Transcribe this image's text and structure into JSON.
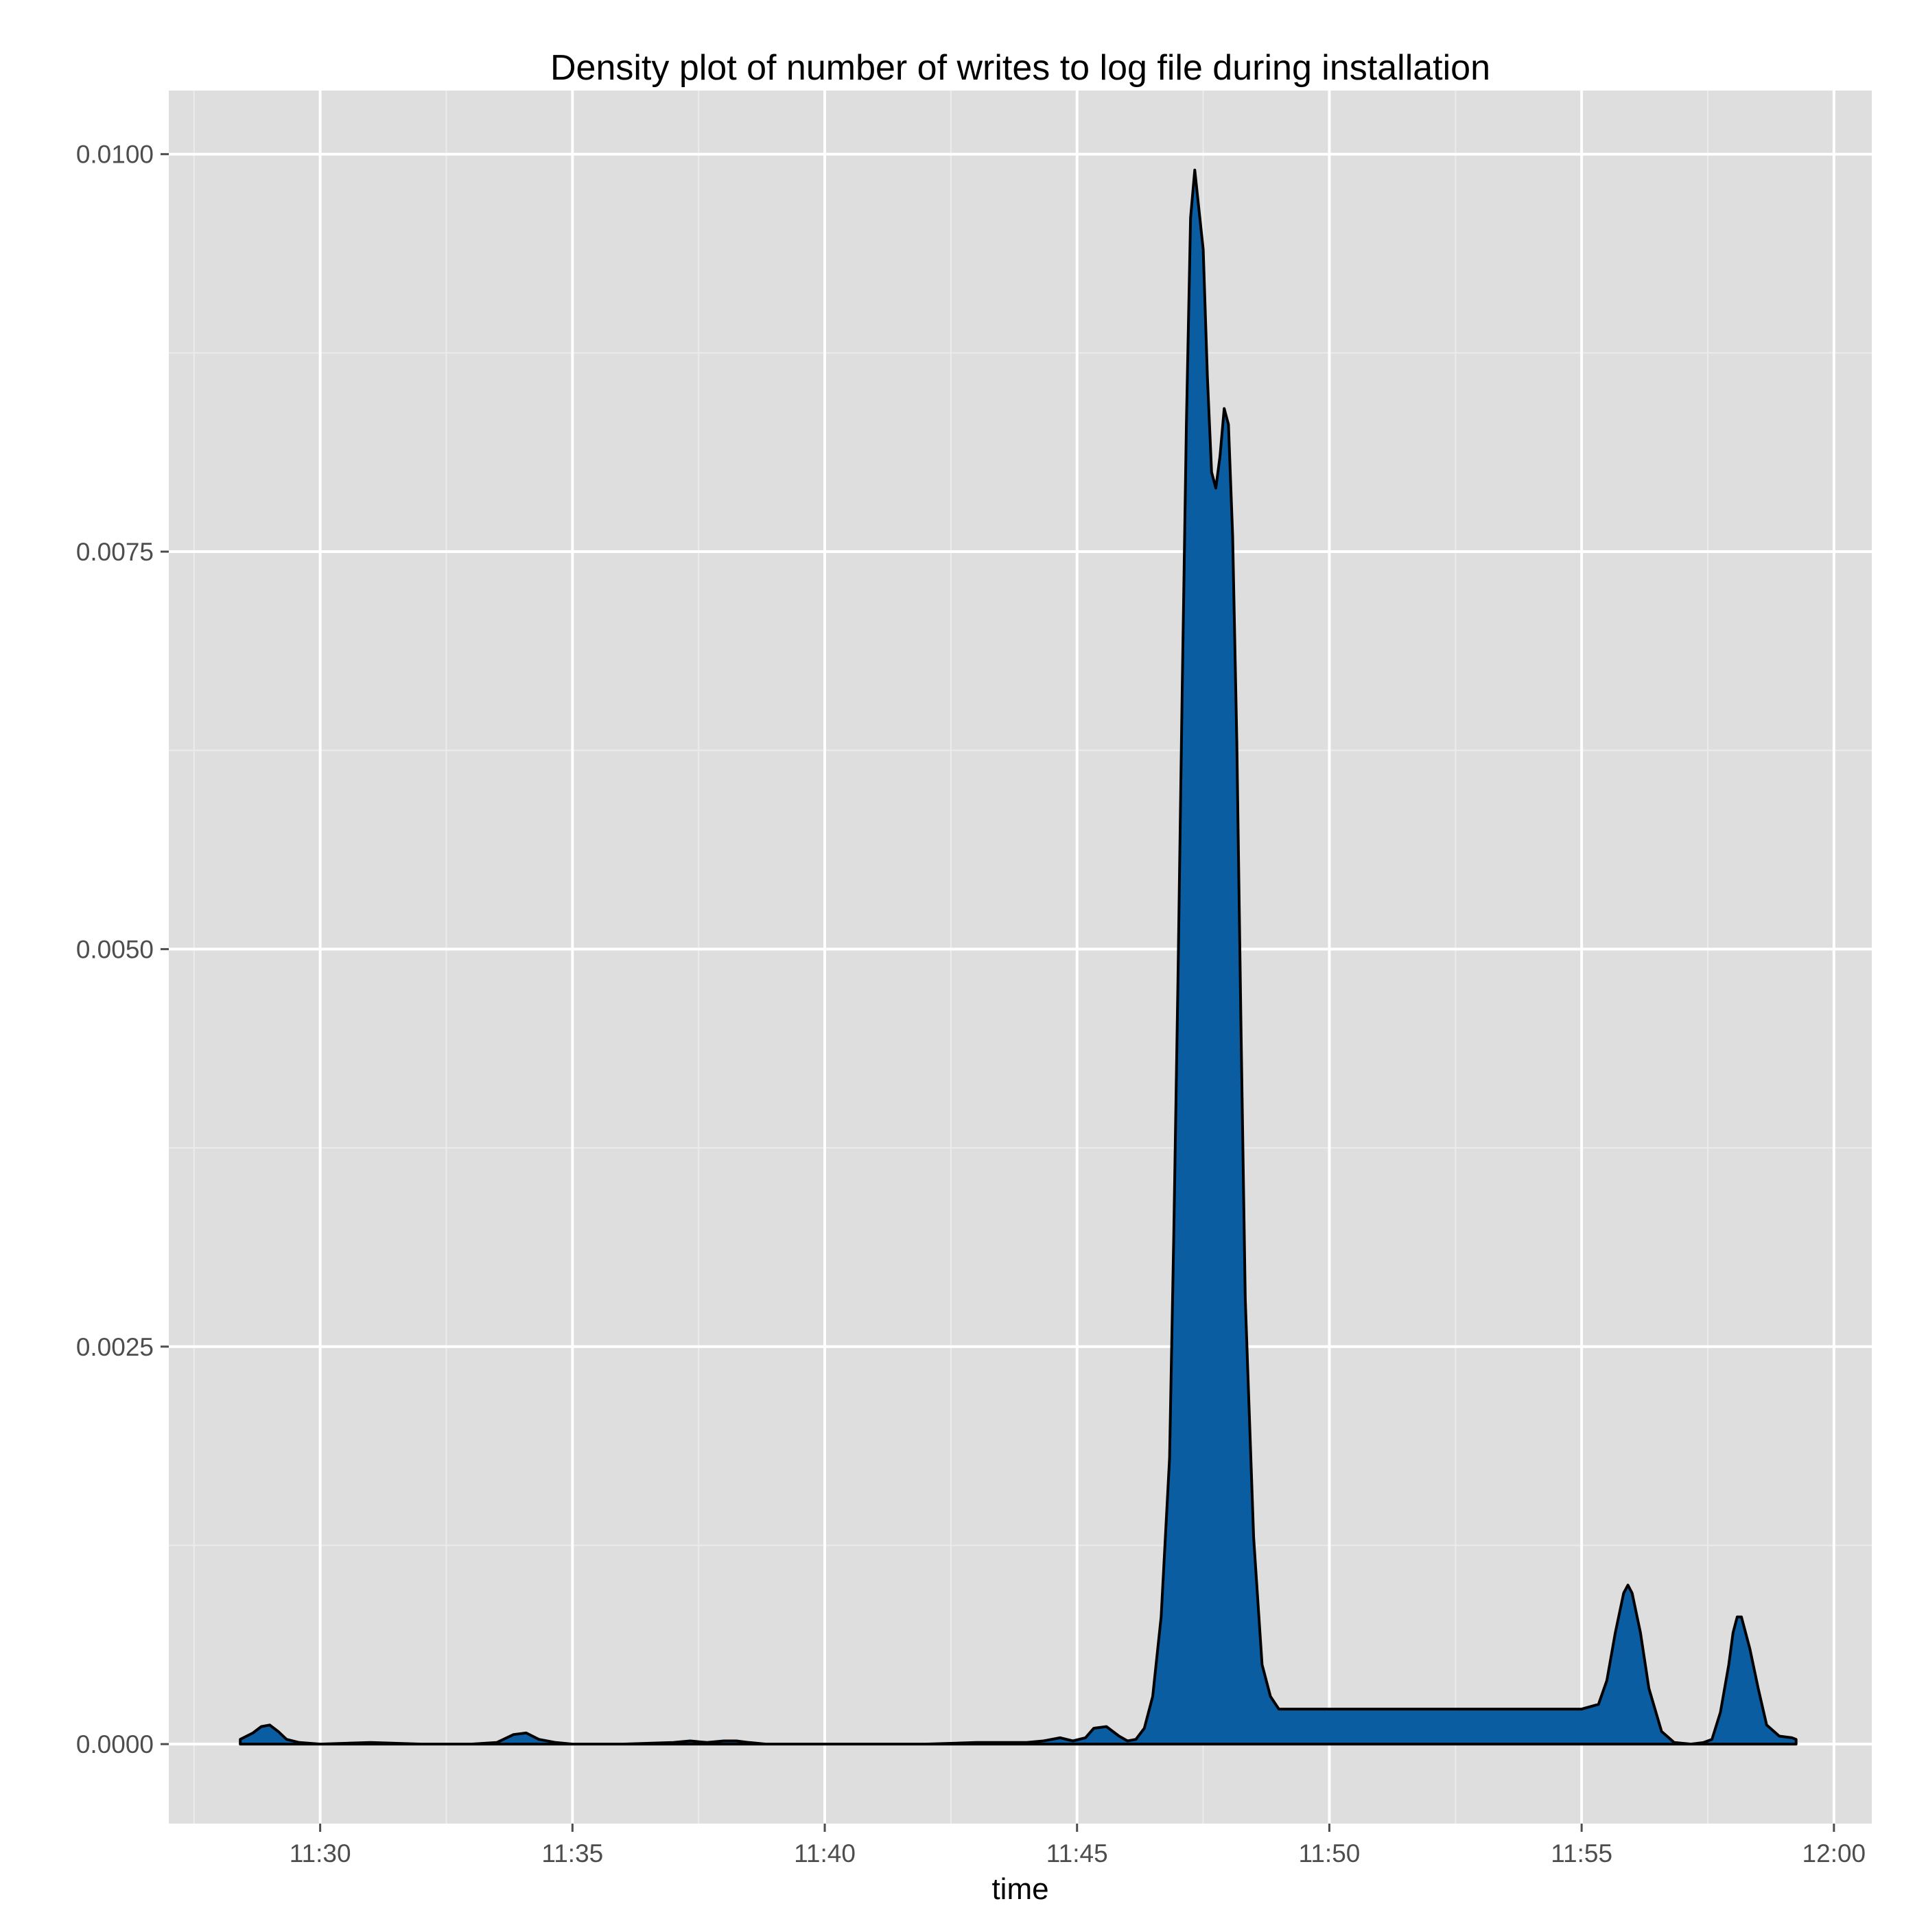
{
  "chart_data": {
    "type": "area",
    "title": "Density plot of number of writes to log file during installation",
    "xlabel": "time",
    "ylabel": "",
    "x_ticks": [
      "11:30",
      "11:35",
      "11:40",
      "11:45",
      "11:50",
      "11:55",
      "12:00"
    ],
    "y_ticks": [
      "0.0000",
      "0.0025",
      "0.0050",
      "0.0075",
      "0.0100"
    ],
    "xlim": [
      "11:27:00",
      "12:00:45"
    ],
    "ylim": [
      -0.0005,
      0.0104
    ],
    "grid": true,
    "colors": {
      "panel_background": "#dedede",
      "grid_major": "#ffffff",
      "fill": "#0b5da1",
      "outline": "#000000"
    },
    "series": [
      {
        "x": [
          "11:28:25",
          "11:28:40",
          "11:28:50",
          "11:29:00",
          "11:29:10",
          "11:29:20",
          "11:29:35",
          "11:30:00",
          "11:31:00",
          "11:32:00",
          "11:33:00",
          "11:33:30",
          "11:33:50",
          "11:34:05",
          "11:34:20",
          "11:34:40",
          "11:35:00",
          "11:36:00",
          "11:37:00",
          "11:37:20",
          "11:37:40",
          "11:38:00",
          "11:38:15",
          "11:38:30",
          "11:38:50",
          "11:39:10",
          "11:40:00",
          "11:41:00",
          "11:42:00",
          "11:43:00",
          "11:44:00",
          "11:44:20",
          "11:44:40",
          "11:44:55",
          "11:45:10",
          "11:45:20",
          "11:45:35",
          "11:45:50",
          "11:46:00",
          "11:46:10",
          "11:46:20",
          "11:46:30",
          "11:46:40",
          "11:46:50",
          "11:46:55",
          "11:47:00",
          "11:47:05",
          "11:47:10",
          "11:47:15",
          "11:47:20",
          "11:47:30",
          "11:47:35",
          "11:47:40",
          "11:47:45",
          "11:47:50",
          "11:47:55",
          "11:48:00",
          "11:48:05",
          "11:48:10",
          "11:48:15",
          "11:48:20",
          "11:48:30",
          "11:48:40",
          "11:48:50",
          "11:49:00",
          "11:50:00",
          "11:51:00",
          "11:52:00",
          "11:52:30",
          "11:53:00",
          "11:54:00",
          "11:55:00",
          "11:55:20",
          "11:55:30",
          "11:55:40",
          "11:55:50",
          "11:55:55",
          "11:56:00",
          "11:56:10",
          "11:56:20",
          "11:56:35",
          "11:56:50",
          "11:57:10",
          "11:57:25",
          "11:57:35",
          "11:57:45",
          "11:57:55",
          "11:58:00",
          "11:58:05",
          "11:58:10",
          "11:58:20",
          "11:58:30",
          "11:58:40",
          "11:58:55",
          "11:59:10",
          "11:59:15"
        ],
        "y": [
          3e-05,
          7e-05,
          0.00011,
          0.00012,
          8e-05,
          3e-05,
          1e-05,
          0.0,
          1e-05,
          0.0,
          0.0,
          1e-05,
          6e-05,
          7e-05,
          3e-05,
          1e-05,
          0.0,
          0.0,
          1e-05,
          2e-05,
          1e-05,
          2e-05,
          2e-05,
          1e-05,
          0.0,
          0.0,
          0.0,
          0.0,
          0.0,
          1e-05,
          1e-05,
          2e-05,
          4e-05,
          2e-05,
          4e-05,
          0.0001,
          0.00011,
          5e-05,
          2e-05,
          3e-05,
          0.0001,
          0.0003,
          0.0008,
          0.0018,
          0.0032,
          0.0048,
          0.0066,
          0.0083,
          0.0096,
          0.0099,
          0.0094,
          0.0086,
          0.008,
          0.0079,
          0.0081,
          0.0084,
          0.0083,
          0.0076,
          0.0063,
          0.0045,
          0.0028,
          0.0013,
          0.0005,
          0.0003,
          0.00022,
          0.00022,
          0.00022,
          0.00022,
          0.00022,
          0.00022,
          0.00022,
          0.00022,
          0.00025,
          0.0004,
          0.0007,
          0.00095,
          0.001,
          0.00095,
          0.0007,
          0.00035,
          8e-05,
          1e-05,
          0.0,
          1e-05,
          3e-05,
          0.0002,
          0.0005,
          0.0007,
          0.0008,
          0.0008,
          0.0006,
          0.00035,
          0.00012,
          5e-05,
          4e-05,
          3e-05
        ]
      }
    ]
  }
}
